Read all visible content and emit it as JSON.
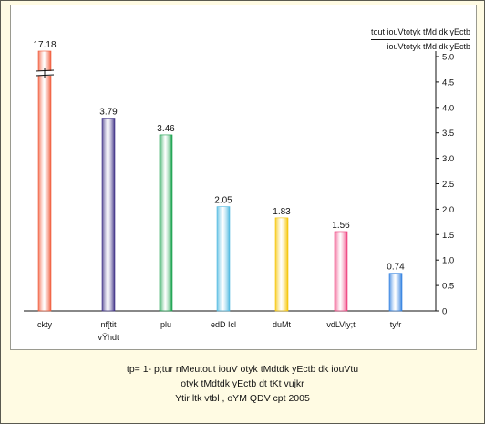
{
  "chart_data": {
    "type": "bar",
    "categories": [
      "ckty",
      "nf[tit\nvŸhdt",
      "plu",
      "edD Icl",
      "duMt",
      "vdLVly;t",
      "ty/r"
    ],
    "values": [
      17.18,
      3.79,
      3.46,
      2.05,
      1.83,
      1.56,
      0.74
    ],
    "value_labels": [
      "17.18",
      "3.79",
      "3.46",
      "2.05",
      "1.83",
      "1.56",
      "0.74"
    ],
    "bar_colors": [
      "#f15a3a",
      "#3d2f85",
      "#15a04a",
      "#4db8e0",
      "#f5c400",
      "#ee3f7d",
      "#2f7fe0"
    ],
    "axis_break": true,
    "y_ticks": [
      "0",
      "0.5",
      "1.0",
      "1.5",
      "2.0",
      "2.5",
      "3.0",
      "3.5",
      "4.0",
      "4.5",
      "5.0"
    ],
    "ylim": [
      0,
      5.0
    ],
    "ylabel_line1": "tout iouVtotyk tMd dk yEctb",
    "ylabel_line2": "iouVtotyk tMd dk yEctb",
    "caption": [
      "tp= 1- p;tur nMeutout iouV otyk tMdtdk yEctb dk iouVtu",
      "otyk tMdtdk yEctb dt tKt vujkr",
      "Ytir ltk vtbl , oYM QDV cpt 2005"
    ]
  }
}
